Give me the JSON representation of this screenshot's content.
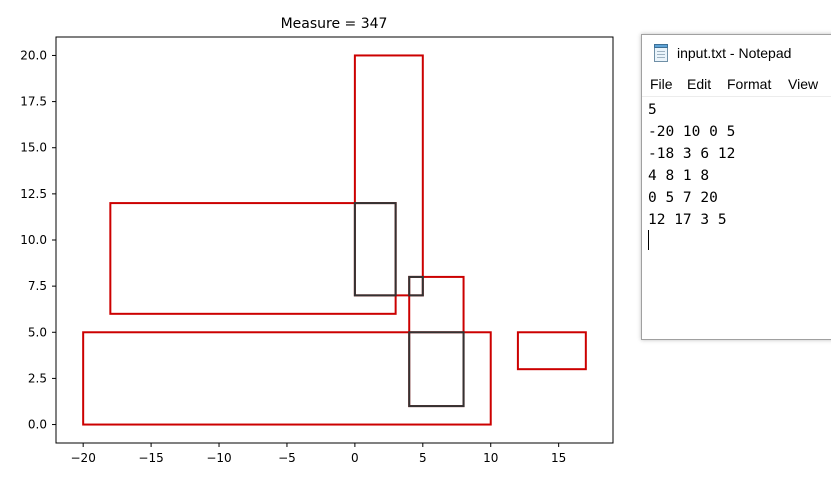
{
  "chart_data": {
    "type": "rectangles",
    "title": "Measure = 347",
    "xlim": [
      -22,
      19
    ],
    "ylim": [
      -1,
      21
    ],
    "xticks": [
      -20,
      -15,
      -10,
      -5,
      0,
      5,
      10,
      15
    ],
    "yticks": [
      0.0,
      2.5,
      5.0,
      7.5,
      10.0,
      12.5,
      15.0,
      17.5,
      20.0
    ],
    "xtick_labels": [
      "−20",
      "−15",
      "−10",
      "−5",
      "0",
      "5",
      "10",
      "15"
    ],
    "ytick_labels": [
      "0.0",
      "2.5",
      "5.0",
      "7.5",
      "10.0",
      "12.5",
      "15.0",
      "17.5",
      "20.0"
    ],
    "colors": {
      "rectangle": "#cc0000",
      "overlap": "#333333"
    },
    "rectangles": [
      {
        "x0": -20,
        "x1": 10,
        "y0": 0,
        "y1": 5
      },
      {
        "x0": -18,
        "x1": 3,
        "y0": 6,
        "y1": 12
      },
      {
        "x0": 4,
        "x1": 8,
        "y0": 1,
        "y1": 8
      },
      {
        "x0": 0,
        "x1": 5,
        "y0": 7,
        "y1": 20
      },
      {
        "x0": 12,
        "x1": 17,
        "y0": 3,
        "y1": 5
      }
    ],
    "overlaps": [
      {
        "x0": 0,
        "x1": 3,
        "y0": 7,
        "y1": 12
      },
      {
        "x0": 4,
        "x1": 5,
        "y0": 7,
        "y1": 8
      },
      {
        "x0": 4,
        "x1": 8,
        "y0": 1,
        "y1": 5
      }
    ]
  },
  "notepad": {
    "title": "input.txt - Notepad",
    "icon": "notepad-icon",
    "menu": [
      "File",
      "Edit",
      "Format",
      "View"
    ],
    "lines": [
      "5",
      "-20 10 0 5",
      "-18 3 6 12",
      "4 8 1 8",
      "0 5 7 20",
      "12 17 3 5"
    ]
  }
}
